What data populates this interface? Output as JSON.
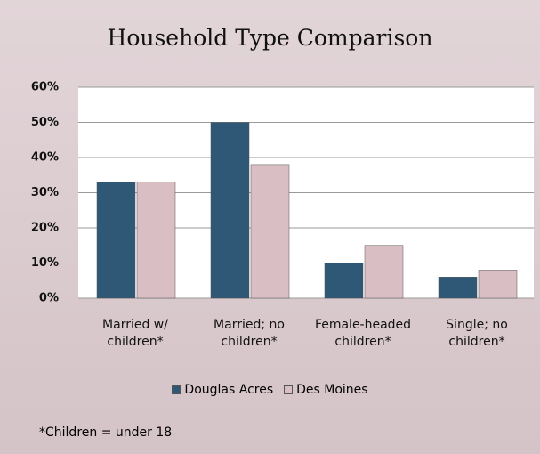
{
  "chart_data": {
    "type": "bar",
    "title": "Household Type Comparison",
    "categories": [
      "Married w/ children*",
      "Married; no children*",
      "Female-headed children*",
      "Single; no children*"
    ],
    "series": [
      {
        "name": "Douglas Acres",
        "color": "#2f5876",
        "values": [
          33,
          50,
          10,
          6
        ]
      },
      {
        "name": "Des Moines",
        "color": "#d9bfc4",
        "values": [
          33,
          38,
          15,
          8
        ]
      }
    ],
    "ylim": [
      0,
      60
    ],
    "yticks": [
      {
        "value": 0,
        "label": "0%"
      },
      {
        "value": 10,
        "label": "10%"
      },
      {
        "value": 20,
        "label": "20%"
      },
      {
        "value": 30,
        "label": "30%"
      },
      {
        "value": 40,
        "label": "40%"
      },
      {
        "value": 50,
        "label": "50%"
      },
      {
        "value": 60,
        "label": "60%"
      }
    ],
    "grid": true,
    "legend": "bottom",
    "annotations": [
      "*Children = under 18"
    ]
  }
}
